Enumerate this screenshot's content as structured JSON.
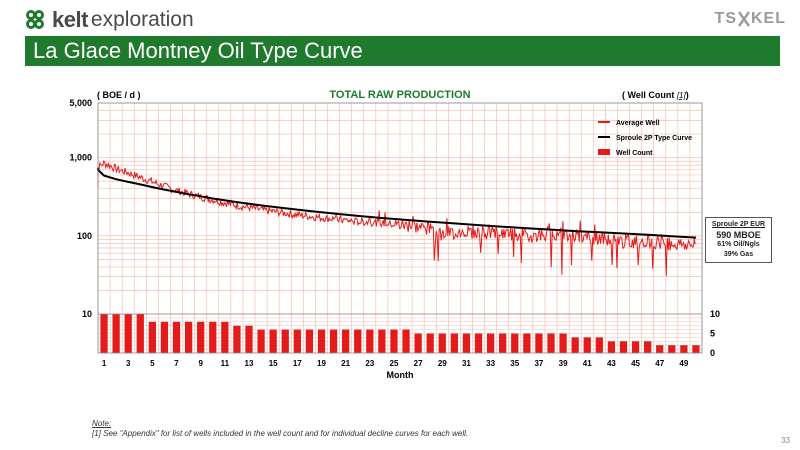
{
  "header": {
    "logo_bold": "kelt",
    "logo_light": "exploration",
    "brand_right_left": "TS",
    "brand_right_right": "KEL",
    "title": "La Glace Montney Oil Type Curve"
  },
  "chart_data": {
    "type": "line",
    "title": "TOTAL RAW PRODUCTION",
    "ylabel_left": "( BOE / d )",
    "ylabel_right": "( Well Count ",
    "ylabel_right_ref": "[1]",
    "ylabel_right_close": ")",
    "xlabel": "Month",
    "xlim": [
      1,
      50
    ],
    "ylim_log": [
      10,
      5000
    ],
    "y_ticks": [
      "5,000",
      "1,000",
      "100",
      "10"
    ],
    "y_tick_values": [
      5000,
      1000,
      100,
      10
    ],
    "count_ylim": [
      0,
      10
    ],
    "count_ticks": [
      "10",
      "5",
      "0"
    ],
    "count_tick_values": [
      10,
      5,
      0
    ],
    "x_ticks": [
      "1",
      "3",
      "5",
      "7",
      "9",
      "11",
      "13",
      "15",
      "17",
      "19",
      "21",
      "23",
      "25",
      "27",
      "29",
      "31",
      "33",
      "35",
      "37",
      "39",
      "41",
      "43",
      "45",
      "47",
      "49"
    ],
    "legend": {
      "position": "top-right",
      "items": [
        {
          "label": "Average Well",
          "color": "#e31b1b",
          "kind": "line"
        },
        {
          "label": "Sproule 2P Type Curve",
          "color": "#000000",
          "kind": "line"
        },
        {
          "label": "Well Count",
          "color": "#e31b1b",
          "kind": "bar"
        }
      ]
    },
    "series": [
      {
        "name": "Average Well",
        "color": "#e31b1b",
        "x": [
          0.1,
          0.5,
          1,
          1.5,
          2,
          3,
          4,
          5,
          6,
          7,
          8,
          9,
          10,
          11,
          12,
          13,
          14,
          15,
          16,
          17,
          18,
          19,
          20,
          21,
          22,
          23,
          24,
          25,
          26,
          27,
          28,
          29,
          30,
          31,
          32,
          33,
          34,
          35,
          36,
          37,
          38,
          39,
          40,
          41,
          42,
          43,
          44,
          45,
          46,
          47,
          48,
          49,
          50
        ],
        "y": [
          420,
          750,
          850,
          790,
          720,
          640,
          560,
          490,
          430,
          380,
          345,
          315,
          290,
          265,
          245,
          230,
          215,
          205,
          195,
          185,
          178,
          170,
          165,
          158,
          152,
          150,
          145,
          140,
          136,
          130,
          120,
          105,
          110,
          115,
          110,
          112,
          108,
          105,
          100,
          102,
          110,
          105,
          100,
          95,
          90,
          88,
          85,
          85,
          88,
          82,
          80,
          78,
          75
        ]
      },
      {
        "name": "Sproule 2P Type Curve",
        "color": "#000000",
        "x": [
          0,
          0.3,
          1,
          2,
          3,
          4,
          5,
          6,
          7,
          8,
          9,
          10,
          12,
          14,
          16,
          18,
          20,
          22,
          24,
          26,
          28,
          30,
          32,
          34,
          36,
          38,
          40,
          42,
          44,
          46,
          48,
          50
        ],
        "y": [
          740,
          700,
          590,
          530,
          490,
          455,
          420,
          390,
          365,
          340,
          320,
          300,
          270,
          245,
          225,
          208,
          193,
          180,
          169,
          160,
          151,
          144,
          137,
          131,
          125,
          120,
          115,
          111,
          107,
          103,
          99,
          95
        ]
      }
    ],
    "well_count": {
      "name": "Well Count",
      "color": "#e31b1b",
      "x": [
        1,
        2,
        3,
        4,
        5,
        6,
        7,
        8,
        9,
        10,
        11,
        12,
        13,
        14,
        15,
        16,
        17,
        18,
        19,
        20,
        21,
        22,
        23,
        24,
        25,
        26,
        27,
        28,
        29,
        30,
        31,
        32,
        33,
        34,
        35,
        36,
        37,
        38,
        39,
        40,
        41,
        42,
        43,
        44,
        45,
        46,
        47,
        48,
        49,
        50
      ],
      "values": [
        10,
        10,
        10,
        10,
        8,
        8,
        8,
        8,
        8,
        8,
        8,
        7,
        7,
        6,
        6,
        6,
        6,
        6,
        6,
        6,
        6,
        6,
        6,
        6,
        6,
        6,
        5,
        5,
        5,
        5,
        5,
        5,
        5,
        5,
        5,
        5,
        5,
        5,
        5,
        4,
        4,
        4,
        3,
        3,
        3,
        3,
        2,
        2,
        2,
        2
      ]
    },
    "grid": true
  },
  "eur_box": {
    "title": "Sproule 2P EUR",
    "value": "590 MBOE",
    "line1": "61% Oil/Ngls",
    "line2": "39% Gas"
  },
  "notes": {
    "note_label": "Note:",
    "footnote": "[1] See \"Appendix\" for list of wells included in the well count and for individual decline curves for each well."
  },
  "page_number": "33"
}
